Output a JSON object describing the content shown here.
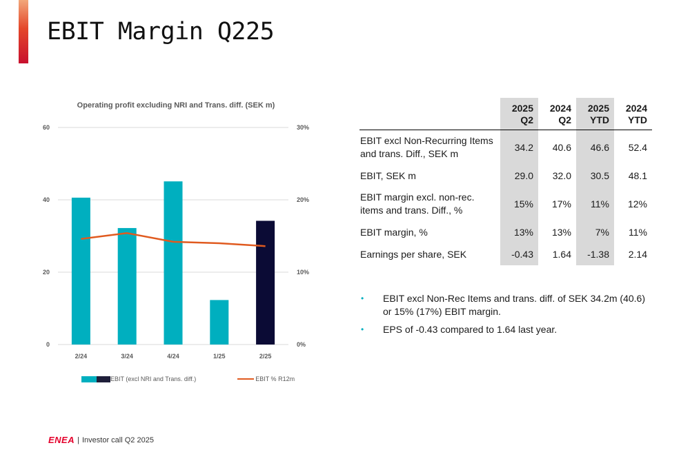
{
  "page": {
    "title": "EBIT Margin Q225"
  },
  "chart_data": {
    "type": "bar",
    "title": "Operating profit excluding NRI and Trans. diff. (SEK m)",
    "categories": [
      "2/24",
      "3/24",
      "4/24",
      "1/25",
      "2/25"
    ],
    "series": [
      {
        "name": "EBIT (excl NRI and Trans. diff.)",
        "type": "bar",
        "axis": "left",
        "values": [
          40.6,
          32.2,
          45.1,
          12.3,
          34.2
        ],
        "colors": [
          "#00afbf",
          "#00afbf",
          "#00afbf",
          "#00afbf",
          "#0b0b35"
        ]
      },
      {
        "name": "EBIT % R12m",
        "type": "line",
        "axis": "right",
        "color": "#e05a1f",
        "values": [
          14.6,
          15.4,
          14.2,
          14.0,
          13.6
        ]
      }
    ],
    "y_left": {
      "ylim": [
        0,
        60
      ],
      "ticks": [
        "0",
        "20",
        "40",
        "60"
      ]
    },
    "y_right": {
      "ylim": [
        0,
        30
      ],
      "ticks": [
        "0%",
        "10%",
        "20%",
        "30%"
      ]
    },
    "grid": true,
    "legend": "bottom"
  },
  "legend": {
    "bar_label": "EBIT (excl NRI and Trans. diff.)",
    "line_label": "EBIT % R12m"
  },
  "table": {
    "headers": [
      {
        "line1": "",
        "line2": ""
      },
      {
        "line1": "2025",
        "line2": "Q2"
      },
      {
        "line1": "2024",
        "line2": "Q2"
      },
      {
        "line1": "2025",
        "line2": "YTD"
      },
      {
        "line1": "2024",
        "line2": "YTD"
      }
    ],
    "rows": [
      {
        "label": "EBIT excl Non-Recurring Items and trans. Diff., SEK m",
        "values": [
          "34.2",
          "40.6",
          "46.6",
          "52.4"
        ]
      },
      {
        "label": "EBIT, SEK m",
        "values": [
          "29.0",
          "32.0",
          "30.5",
          "48.1"
        ]
      },
      {
        "label": "EBIT margin excl. non-rec. items and trans. Diff., %",
        "values": [
          "15%",
          "17%",
          "11%",
          "12%"
        ]
      },
      {
        "label": "EBIT margin, %",
        "values": [
          "13%",
          "13%",
          "7%",
          "11%"
        ]
      },
      {
        "label": "Earnings per share, SEK",
        "values": [
          "-0.43",
          "1.64",
          "-1.38",
          "2.14"
        ]
      }
    ]
  },
  "bullets": [
    {
      "marker": "•",
      "text": "EBIT excl Non-Rec Items and trans. diff. of SEK 34.2m (40.6) or 15% (17%) EBIT margin."
    },
    {
      "marker": "•",
      "text": "EPS of -0.43 compared to 1.64 last year."
    }
  ],
  "footer": {
    "logo": "ENEA",
    "separator": "|",
    "text": "Investor call Q2 2025"
  }
}
